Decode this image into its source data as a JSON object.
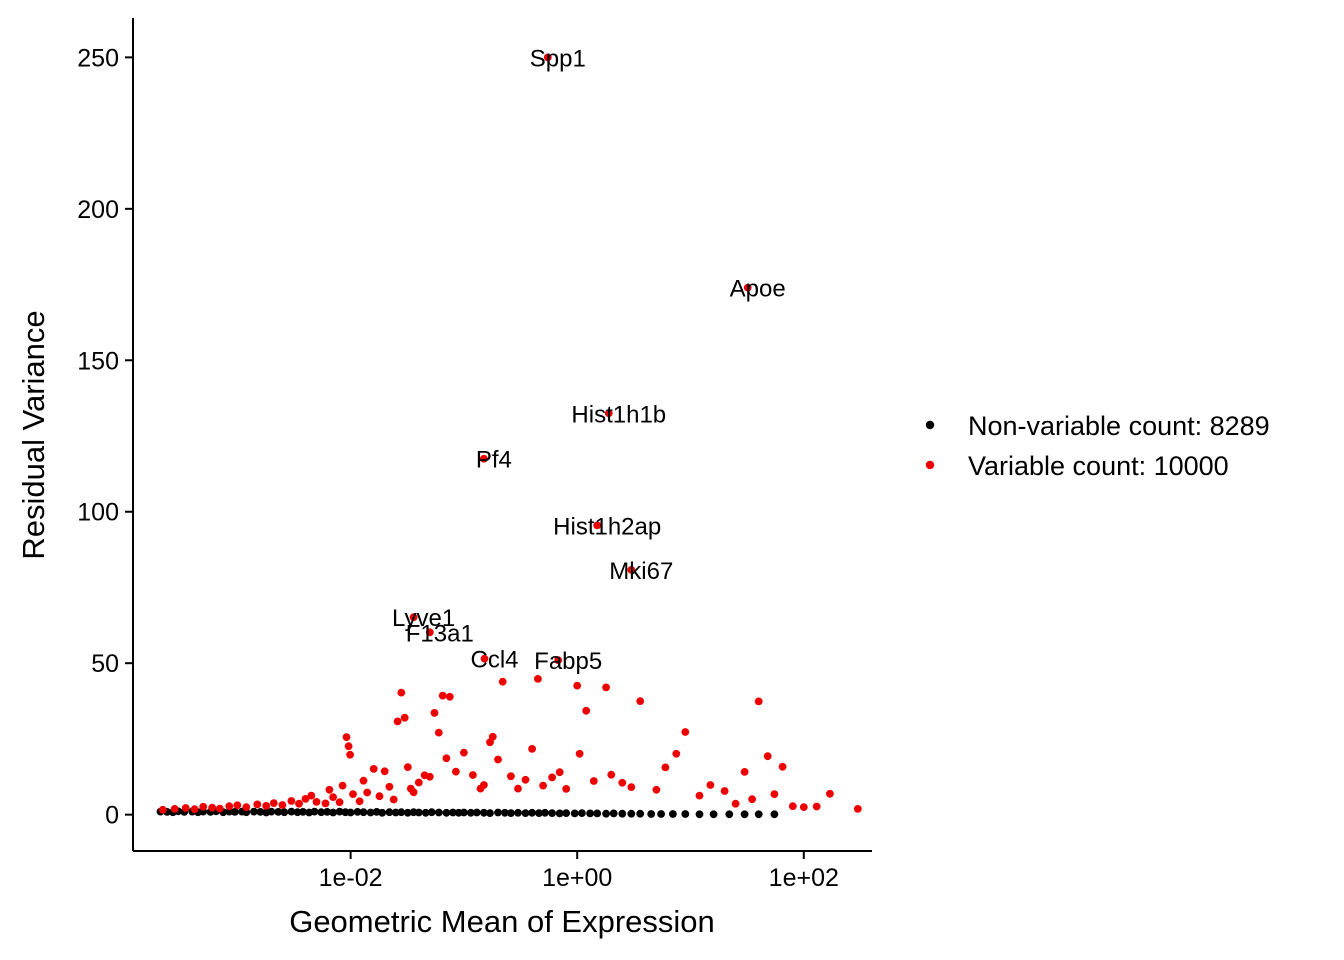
{
  "chart_data": {
    "type": "scatter",
    "xlabel": "Geometric Mean of Expression",
    "ylabel": "Residual Variance",
    "x_scale": "log10",
    "xlim": [
      0.00012,
      400
    ],
    "ylim": [
      -12,
      263
    ],
    "x_ticks": [
      {
        "value": 0.01,
        "label": "1e-02"
      },
      {
        "value": 1,
        "label": "1e+00"
      },
      {
        "value": 100,
        "label": "1e+02"
      }
    ],
    "y_ticks": [
      {
        "value": 0,
        "label": "0"
      },
      {
        "value": 50,
        "label": "50"
      },
      {
        "value": 100,
        "label": "100"
      },
      {
        "value": 150,
        "label": "150"
      },
      {
        "value": 200,
        "label": "200"
      },
      {
        "value": 250,
        "label": "250"
      }
    ],
    "grid": false,
    "legend_position": "right",
    "series": [
      {
        "name": "Non-variable count: 8289",
        "color": "#000000",
        "points": [
          [
            0.00021,
            1.0
          ],
          [
            0.00024,
            0.9
          ],
          [
            0.00027,
            0.8
          ],
          [
            0.0003,
            1.1
          ],
          [
            0.00034,
            0.9
          ],
          [
            0.0004,
            1.0
          ],
          [
            0.00045,
            0.8
          ],
          [
            0.0005,
            1.0
          ],
          [
            0.00058,
            0.9
          ],
          [
            0.00065,
            1.1
          ],
          [
            0.00075,
            0.8
          ],
          [
            0.00085,
            1.0
          ],
          [
            0.00095,
            0.9
          ],
          [
            0.0011,
            1.0
          ],
          [
            0.0012,
            0.8
          ],
          [
            0.0014,
            1.0
          ],
          [
            0.0016,
            0.9
          ],
          [
            0.0018,
            0.7
          ],
          [
            0.002,
            1.0
          ],
          [
            0.0023,
            0.9
          ],
          [
            0.0026,
            0.8
          ],
          [
            0.003,
            1.0
          ],
          [
            0.0034,
            0.8
          ],
          [
            0.0038,
            0.9
          ],
          [
            0.0043,
            0.7
          ],
          [
            0.0048,
            1.0
          ],
          [
            0.0055,
            0.8
          ],
          [
            0.0062,
            0.9
          ],
          [
            0.007,
            0.7
          ],
          [
            0.008,
            1.0
          ],
          [
            0.009,
            0.8
          ],
          [
            0.01,
            0.7
          ],
          [
            0.0115,
            0.9
          ],
          [
            0.013,
            0.8
          ],
          [
            0.015,
            0.7
          ],
          [
            0.017,
            0.9
          ],
          [
            0.019,
            0.6
          ],
          [
            0.022,
            0.8
          ],
          [
            0.025,
            0.7
          ],
          [
            0.028,
            0.8
          ],
          [
            0.032,
            0.6
          ],
          [
            0.036,
            0.8
          ],
          [
            0.04,
            0.7
          ],
          [
            0.046,
            0.6
          ],
          [
            0.052,
            0.8
          ],
          [
            0.06,
            0.7
          ],
          [
            0.07,
            0.6
          ],
          [
            0.08,
            0.7
          ],
          [
            0.09,
            0.6
          ],
          [
            0.1,
            0.7
          ],
          [
            0.115,
            0.6
          ],
          [
            0.13,
            0.7
          ],
          [
            0.15,
            0.6
          ],
          [
            0.17,
            0.5
          ],
          [
            0.2,
            0.7
          ],
          [
            0.23,
            0.6
          ],
          [
            0.26,
            0.5
          ],
          [
            0.3,
            0.6
          ],
          [
            0.35,
            0.5
          ],
          [
            0.4,
            0.6
          ],
          [
            0.46,
            0.5
          ],
          [
            0.52,
            0.6
          ],
          [
            0.6,
            0.5
          ],
          [
            0.7,
            0.4
          ],
          [
            0.8,
            0.5
          ],
          [
            0.95,
            0.4
          ],
          [
            1.1,
            0.5
          ],
          [
            1.3,
            0.4
          ],
          [
            1.5,
            0.4
          ],
          [
            1.8,
            0.3
          ],
          [
            2.1,
            0.4
          ],
          [
            2.5,
            0.3
          ],
          [
            3.0,
            0.3
          ],
          [
            3.6,
            0.3
          ],
          [
            4.5,
            0.2
          ],
          [
            5.5,
            0.2
          ],
          [
            7.0,
            0.2
          ],
          [
            9.0,
            0.2
          ],
          [
            12,
            0.1
          ],
          [
            16,
            0.1
          ],
          [
            22,
            0.1
          ],
          [
            30,
            0.1
          ],
          [
            40,
            0.1
          ],
          [
            55,
            0.1
          ]
        ]
      },
      {
        "name": "Variable count: 10000",
        "color": "#ee0000",
        "points": [
          [
            0.00022,
            1.6
          ],
          [
            0.00028,
            1.9
          ],
          [
            0.00035,
            2.2
          ],
          [
            0.00042,
            1.8
          ],
          [
            0.0005,
            2.6
          ],
          [
            0.0006,
            2.3
          ],
          [
            0.0007,
            2.0
          ],
          [
            0.00085,
            2.8
          ],
          [
            0.001,
            3.1
          ],
          [
            0.0012,
            2.5
          ],
          [
            0.0015,
            3.4
          ],
          [
            0.0018,
            2.9
          ],
          [
            0.0021,
            3.8
          ],
          [
            0.0025,
            3.2
          ],
          [
            0.003,
            4.5
          ],
          [
            0.0035,
            3.6
          ],
          [
            0.004,
            5.2
          ],
          [
            0.0045,
            6.3
          ],
          [
            0.005,
            4.2
          ],
          [
            0.006,
            3.7
          ],
          [
            0.0065,
            8.2
          ],
          [
            0.007,
            5.8
          ],
          [
            0.008,
            4.1
          ],
          [
            0.0085,
            9.6
          ],
          [
            0.0092,
            25.6
          ],
          [
            0.0096,
            22.6
          ],
          [
            0.0099,
            19.8
          ],
          [
            0.0105,
            6.8
          ],
          [
            0.012,
            4.4
          ],
          [
            0.013,
            11.2
          ],
          [
            0.014,
            7.3
          ],
          [
            0.016,
            15.1
          ],
          [
            0.018,
            6.1
          ],
          [
            0.02,
            14.3
          ],
          [
            0.022,
            9.2
          ],
          [
            0.024,
            5.0
          ],
          [
            0.026,
            30.8
          ],
          [
            0.028,
            40.3
          ],
          [
            0.03,
            32.0
          ],
          [
            0.032,
            15.7
          ],
          [
            0.034,
            8.6
          ],
          [
            0.036,
            7.4
          ],
          [
            0.04,
            10.6
          ],
          [
            0.045,
            13.0
          ],
          [
            0.05,
            12.5
          ],
          [
            0.055,
            33.6
          ],
          [
            0.06,
            27.1
          ],
          [
            0.065,
            39.3
          ],
          [
            0.07,
            18.6
          ],
          [
            0.075,
            38.9
          ],
          [
            0.085,
            14.2
          ],
          [
            0.1,
            20.5
          ],
          [
            0.12,
            13.1
          ],
          [
            0.14,
            8.6
          ],
          [
            0.15,
            9.8
          ],
          [
            0.17,
            23.9
          ],
          [
            0.18,
            25.7
          ],
          [
            0.2,
            18.2
          ],
          [
            0.22,
            43.9
          ],
          [
            0.26,
            12.7
          ],
          [
            0.3,
            8.6
          ],
          [
            0.35,
            11.5
          ],
          [
            0.4,
            21.7
          ],
          [
            0.45,
            44.8
          ],
          [
            0.5,
            9.6
          ],
          [
            0.6,
            12.3
          ],
          [
            0.7,
            14.0
          ],
          [
            0.8,
            8.5
          ],
          [
            1.0,
            42.6
          ],
          [
            1.05,
            20.1
          ],
          [
            1.2,
            34.3
          ],
          [
            1.4,
            11.1
          ],
          [
            1.8,
            42.0
          ],
          [
            2.0,
            13.2
          ],
          [
            2.5,
            10.5
          ],
          [
            3.0,
            9.1
          ],
          [
            3.6,
            37.5
          ],
          [
            5.0,
            8.2
          ],
          [
            6.0,
            15.6
          ],
          [
            7.5,
            20.1
          ],
          [
            9.0,
            27.3
          ],
          [
            12,
            6.3
          ],
          [
            15,
            9.8
          ],
          [
            20,
            7.8
          ],
          [
            25,
            3.6
          ],
          [
            30,
            14.1
          ],
          [
            35,
            5.1
          ],
          [
            40,
            37.4
          ],
          [
            48,
            19.3
          ],
          [
            55,
            6.8
          ],
          [
            65,
            15.8
          ],
          [
            80,
            2.8
          ],
          [
            100,
            2.5
          ],
          [
            130,
            2.7
          ],
          [
            170,
            6.9
          ],
          [
            300,
            1.9
          ]
        ]
      }
    ],
    "labels": [
      {
        "text": "Spp1",
        "x": 0.55,
        "y": 250.0,
        "color": "#ee0000"
      },
      {
        "text": "Apoe",
        "x": 32.0,
        "y": 174.0,
        "color": "#ee0000"
      },
      {
        "text": "Hist1h1b",
        "x": 1.9,
        "y": 132.5,
        "color": "#ee0000"
      },
      {
        "text": "Pf4",
        "x": 0.15,
        "y": 117.5,
        "color": "#ee0000"
      },
      {
        "text": "Hist1h2ap",
        "x": 1.5,
        "y": 95.5,
        "color": "#ee0000"
      },
      {
        "text": "Mki67",
        "x": 3.0,
        "y": 80.8,
        "color": "#ee0000"
      },
      {
        "text": "Lyve1",
        "x": 0.036,
        "y": 65.2,
        "color": "#ee0000"
      },
      {
        "text": "F13a1",
        "x": 0.05,
        "y": 60.2,
        "color": "#ee0000"
      },
      {
        "text": "Ccl4",
        "x": 0.152,
        "y": 51.5,
        "color": "#ee0000"
      },
      {
        "text": "Fabp5",
        "x": 0.68,
        "y": 51.0,
        "color": "#ee0000"
      }
    ]
  }
}
